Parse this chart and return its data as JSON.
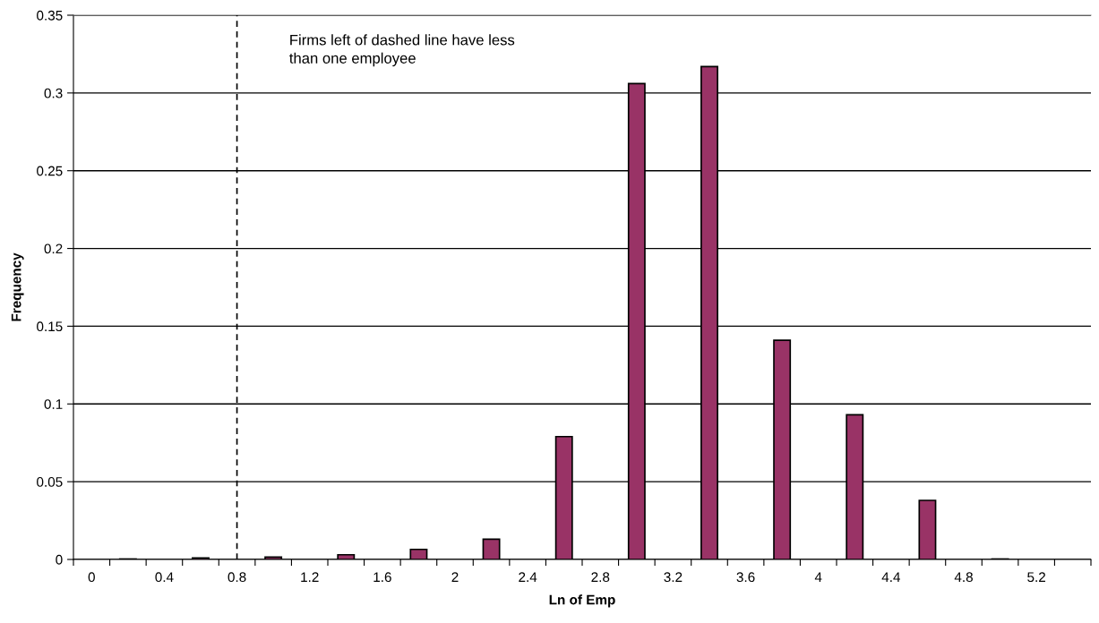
{
  "chart_data": {
    "type": "bar",
    "xlabel": "Ln of Emp",
    "ylabel": "Frequency",
    "categories": [
      "0",
      null,
      "0.4",
      null,
      "0.8",
      null,
      "1.2",
      null,
      "1.6",
      null,
      "2",
      null,
      "2.4",
      null,
      "2.8",
      null,
      "3.2",
      null,
      "3.6",
      null,
      "4",
      null,
      "4.4",
      null,
      "4.8",
      null,
      "5.2",
      null
    ],
    "values": [
      null,
      0.0003,
      null,
      0.001,
      null,
      0.0015,
      null,
      0.003,
      null,
      0.0065,
      null,
      0.013,
      null,
      0.079,
      null,
      0.306,
      null,
      0.317,
      null,
      0.141,
      null,
      0.093,
      null,
      0.038,
      null,
      0.0003,
      null,
      null
    ],
    "color": "#993366",
    "ylim": [
      0,
      0.35
    ],
    "yticks": [
      0,
      0.05,
      0.1,
      0.15,
      0.2,
      0.25,
      0.3,
      0.35
    ],
    "grid": "y",
    "ref_lines": [
      {
        "axis": "x",
        "value": "0.8",
        "line_style": "dashed",
        "color": "#000000"
      }
    ],
    "annotations": [
      "Firms left of dashed line have less\nthan one employee"
    ]
  }
}
